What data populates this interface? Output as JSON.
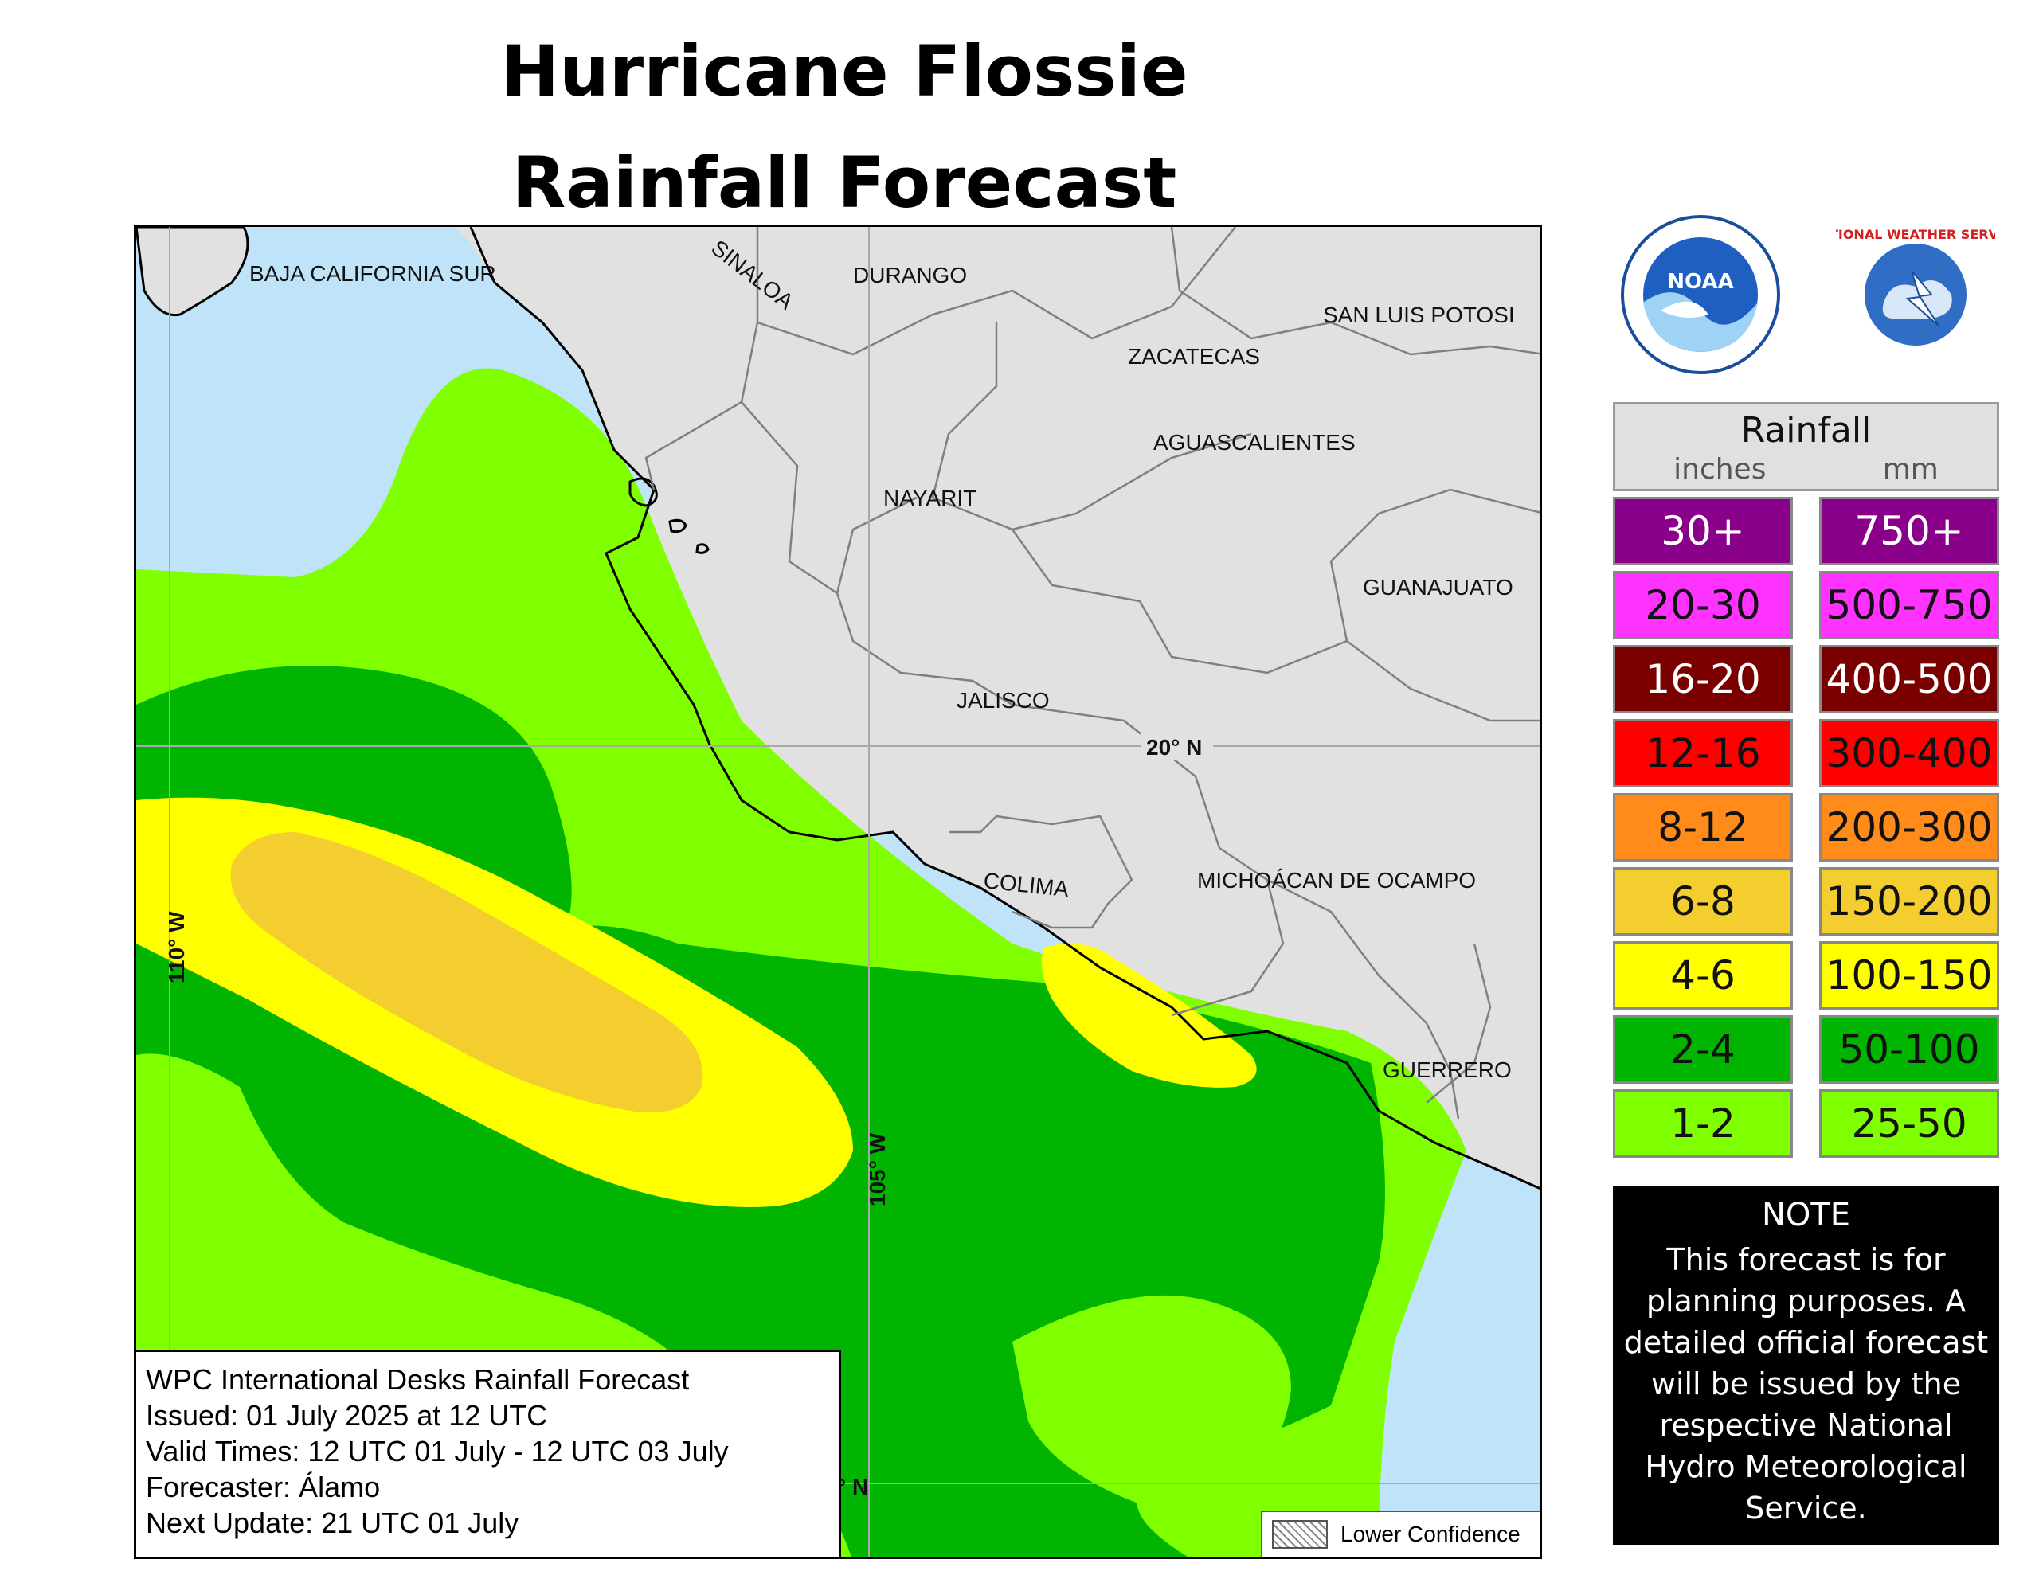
{
  "title": {
    "line1": "Hurricane Flossie",
    "line2": "Rainfall Forecast"
  },
  "map": {
    "states": [
      "BAJA CALIFORNIA SUR",
      "SINALOA",
      "DURANGO",
      "SAN LUIS POTOSI",
      "ZACATECAS",
      "AGUASCALIENTES",
      "NAYARIT",
      "GUANAJUATO",
      "JALISCO",
      "COLIMA",
      "MICHOÁCAN DE OCAMPO",
      "GUERRERO"
    ],
    "gridlines": {
      "lat_label": "20° N",
      "lon_label_1": "110° W",
      "lon_label_2": "105° W",
      "lat_label_2": "° N"
    },
    "colors": {
      "ocean": "#bfe4f9",
      "land": "#e1e1e1",
      "band_1_2": "#7fff00",
      "band_2_4": "#00b400",
      "band_4_6": "#ffff00",
      "band_6_8": "#f4ce2e"
    }
  },
  "info": {
    "line1": "WPC International Desks Rainfall Forecast",
    "line2": "Issued: 01 July 2025 at 12 UTC",
    "line3": "Valid Times: 12 UTC 01 July - 12 UTC 03 July",
    "line4": "Forecaster: Álamo",
    "line5": "Next Update: 21 UTC 01 July"
  },
  "confidence": {
    "label": "Lower Confidence"
  },
  "logos": {
    "noaa": "NOAA",
    "nws": "NATIONAL WEATHER SERVICE"
  },
  "legend": {
    "title": "Rainfall",
    "unit_inches": "inches",
    "unit_mm": "mm",
    "rows": [
      {
        "inches": "30+",
        "mm": "750+",
        "color": "#8b008b"
      },
      {
        "inches": "20-30",
        "mm": "500-750",
        "color": "#ff33ff"
      },
      {
        "inches": "16-20",
        "mm": "400-500",
        "color": "#7a0000"
      },
      {
        "inches": "12-16",
        "mm": "300-400",
        "color": "#ff0000"
      },
      {
        "inches": "8-12",
        "mm": "200-300",
        "color": "#ff8c1a"
      },
      {
        "inches": "6-8",
        "mm": "150-200",
        "color": "#f4ce2e"
      },
      {
        "inches": "4-6",
        "mm": "100-150",
        "color": "#ffff00"
      },
      {
        "inches": "2-4",
        "mm": "50-100",
        "color": "#00b400"
      },
      {
        "inches": "1-2",
        "mm": "25-50",
        "color": "#7fff00"
      }
    ]
  },
  "note": {
    "title": "NOTE",
    "body": "This forecast is for planning purposes. A detailed official forecast will be issued by the respective National Hydro Meteorological Service."
  }
}
